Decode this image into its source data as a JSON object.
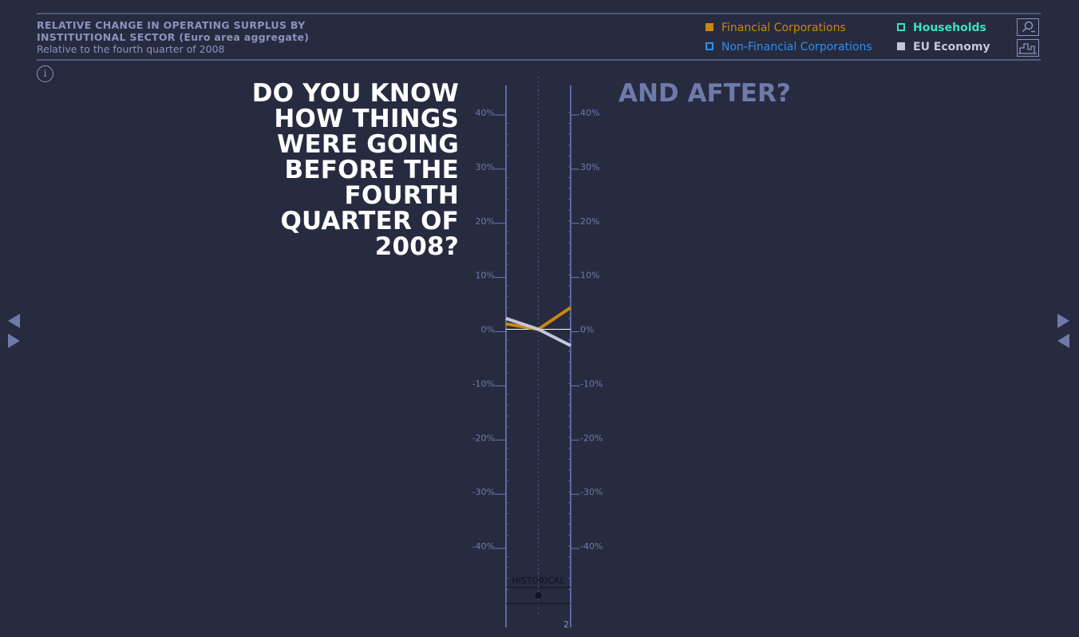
{
  "header": {
    "title_line1": "RELATIVE CHANGE IN OPERATING SURPLUS BY",
    "title_line2": "INSTITUTIONAL SECTOR (Euro area aggregate)",
    "subtitle": "Relative to the fourth quarter of 2008"
  },
  "legend": [
    {
      "label": "Financial Corporations",
      "color": "#c8870f",
      "style": "filled"
    },
    {
      "label": "Households",
      "color": "#3de0c6",
      "style": "outline"
    },
    {
      "label": "Non-Financial Corporations",
      "color": "#2f8ff0",
      "style": "outline"
    },
    {
      "label": "EU Economy",
      "color": "#c4c6dc",
      "style": "filled"
    }
  ],
  "toolbar": {
    "zoom_icon": "magnifier-zoom-icon",
    "chart_icon": "bar-chart-icon",
    "info_icon": "info-icon",
    "info_glyph": "i"
  },
  "question": {
    "lines": [
      "DO YOU KNOW",
      "HOW THINGS",
      "WERE GOING",
      "BEFORE THE",
      "FOURTH",
      "QUARTER OF",
      "2008?"
    ],
    "after": "AND AFTER?"
  },
  "chart_data": {
    "type": "line",
    "y_ticks": [
      "40%",
      "30%",
      "20%",
      "10%",
      "0%",
      "-10%",
      "-20%",
      "-30%",
      "-40%"
    ],
    "ylim": [
      -40,
      40
    ],
    "series": [
      {
        "name": "Financial Corporations",
        "color": "#c8870f",
        "values": [
          1,
          0,
          4
        ]
      },
      {
        "name": "EU Economy",
        "color": "#c4c6dc",
        "values": [
          2,
          0,
          -3
        ]
      }
    ],
    "timeline_label": "HISTORICAL",
    "timeline_tick": "2"
  },
  "nav": {
    "left_prev": "previous-arrow-icon",
    "left_next": "next-arrow-icon",
    "right_next": "next-arrow-icon",
    "right_prev": "previous-arrow-icon"
  }
}
